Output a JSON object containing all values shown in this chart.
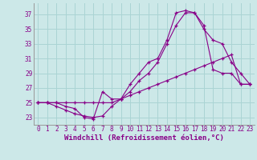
{
  "background_color": "#cce8e8",
  "grid_color": "#aad4d4",
  "line_color": "#880088",
  "xlabel": "Windchill (Refroidissement éolien,°C)",
  "xlabel_fontsize": 6.5,
  "xtick_fontsize": 5.5,
  "ytick_fontsize": 5.5,
  "xlim": [
    -0.5,
    23.5
  ],
  "ylim": [
    22.0,
    38.5
  ],
  "yticks": [
    23,
    25,
    27,
    29,
    31,
    33,
    35,
    37
  ],
  "xticks": [
    0,
    1,
    2,
    3,
    4,
    5,
    6,
    7,
    8,
    9,
    10,
    11,
    12,
    13,
    14,
    15,
    16,
    17,
    18,
    19,
    20,
    21,
    22,
    23
  ],
  "curve1_x": [
    0,
    1,
    2,
    3,
    4,
    5,
    6,
    7,
    8,
    9,
    10,
    11,
    12,
    13,
    14,
    15,
    16,
    17,
    18,
    19,
    20,
    21,
    22,
    23
  ],
  "curve1_y": [
    25.0,
    25.0,
    25.0,
    25.0,
    25.0,
    25.0,
    25.0,
    25.0,
    25.0,
    25.5,
    26.0,
    26.5,
    27.0,
    27.5,
    28.0,
    28.5,
    29.0,
    29.5,
    30.0,
    30.5,
    31.0,
    31.5,
    27.5,
    27.5
  ],
  "curve2_x": [
    0,
    1,
    2,
    3,
    4,
    5,
    6,
    7,
    8,
    9,
    10,
    11,
    12,
    13,
    14,
    15,
    16,
    17,
    18,
    19,
    20,
    21,
    22,
    23
  ],
  "curve2_y": [
    25.0,
    25.0,
    24.5,
    24.0,
    23.5,
    23.2,
    23.0,
    23.2,
    24.5,
    25.5,
    27.5,
    29.0,
    30.5,
    31.0,
    33.5,
    37.2,
    37.5,
    37.2,
    35.5,
    29.5,
    29.0,
    29.0,
    27.5,
    27.5
  ],
  "curve3_x": [
    0,
    1,
    2,
    3,
    4,
    5,
    6,
    7,
    8,
    9,
    10,
    11,
    12,
    13,
    14,
    15,
    16,
    17,
    18,
    19,
    20,
    21,
    22,
    23
  ],
  "curve3_y": [
    25.0,
    25.0,
    25.0,
    24.5,
    24.2,
    23.0,
    22.8,
    26.5,
    25.5,
    25.5,
    26.5,
    28.0,
    29.0,
    30.5,
    33.0,
    35.5,
    37.2,
    37.2,
    35.0,
    33.5,
    33.0,
    30.5,
    29.0,
    27.5
  ]
}
